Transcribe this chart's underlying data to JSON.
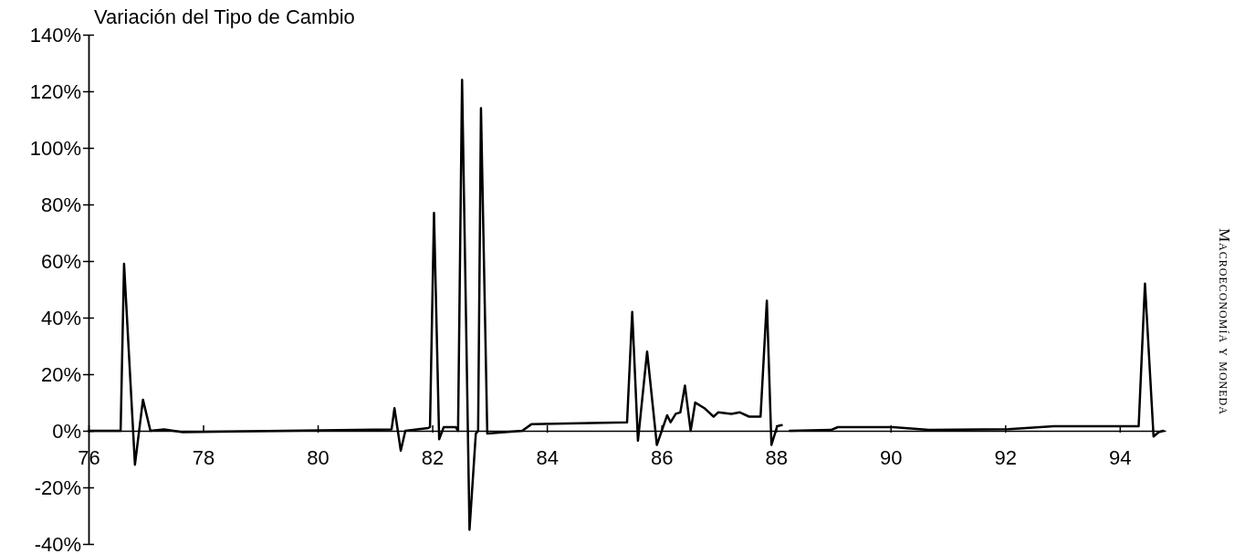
{
  "chart_data": {
    "type": "line",
    "title": "Variación del Tipo de Cambio",
    "annotations": [
      "Macroeconomía y moneda"
    ],
    "xlim": [
      76,
      94.8
    ],
    "xticks": [
      76,
      78,
      80,
      82,
      84,
      86,
      88,
      90,
      92,
      94
    ],
    "ylim": [
      -40,
      140
    ],
    "yticks": [
      {
        "value": -40,
        "label": "-40%"
      },
      {
        "value": -20,
        "label": "-20%"
      },
      {
        "value": 0,
        "label": "0%"
      },
      {
        "value": 20,
        "label": "20%"
      },
      {
        "value": 40,
        "label": "40%"
      },
      {
        "value": 60,
        "label": "60%"
      },
      {
        "value": 80,
        "label": "80%"
      },
      {
        "value": 100,
        "label": "100%"
      },
      {
        "value": 120,
        "label": "120%"
      },
      {
        "value": 140,
        "label": "140%"
      }
    ],
    "grid": false,
    "marker": "none",
    "line_style": "solid",
    "series": [
      {
        "color": "#000000",
        "x": [
          76,
          76.56,
          76.62,
          76.81,
          76.95,
          77.08,
          77.32,
          77.64,
          81.29,
          81.34,
          81.45,
          81.53,
          81.93,
          81.96,
          82.03,
          82.12,
          82.2,
          82.41,
          82.45,
          82.52,
          82.65,
          82.76,
          82.8,
          82.85,
          82.96,
          83.57,
          83.73,
          85.4,
          85.49,
          85.59,
          85.75,
          85.92,
          86.1,
          86.16,
          86.25,
          86.33,
          86.41,
          86.51,
          86.59,
          86.75,
          86.91,
          86.99,
          87.22,
          87.37,
          87.53,
          87.73,
          87.84,
          87.92,
          88.02,
          88.1,
          88.17,
          88.24,
          88.96,
          89.08,
          90.04,
          90.67,
          92.06,
          92.85,
          94.33,
          94.44,
          94.59,
          94.68,
          94.76
        ],
        "values": [
          0,
          0,
          59,
          -12,
          11,
          0,
          0.5,
          -0.5,
          0.5,
          8,
          -7,
          0,
          1,
          1.3,
          77,
          -3,
          1.3,
          1.3,
          0,
          124,
          -35,
          -1,
          0,
          114,
          -1,
          0,
          2.3,
          3,
          42,
          -3.5,
          28,
          -5,
          5.5,
          3,
          6,
          6.5,
          16,
          0,
          10,
          8,
          5,
          6.5,
          6,
          6.5,
          5,
          5,
          46,
          -5,
          1.6,
          2,
          null,
          0,
          0.3,
          1.3,
          1.3,
          0.3,
          0.6,
          1.6,
          1.6,
          52,
          -2,
          -0.5,
          0
        ]
      }
    ]
  }
}
